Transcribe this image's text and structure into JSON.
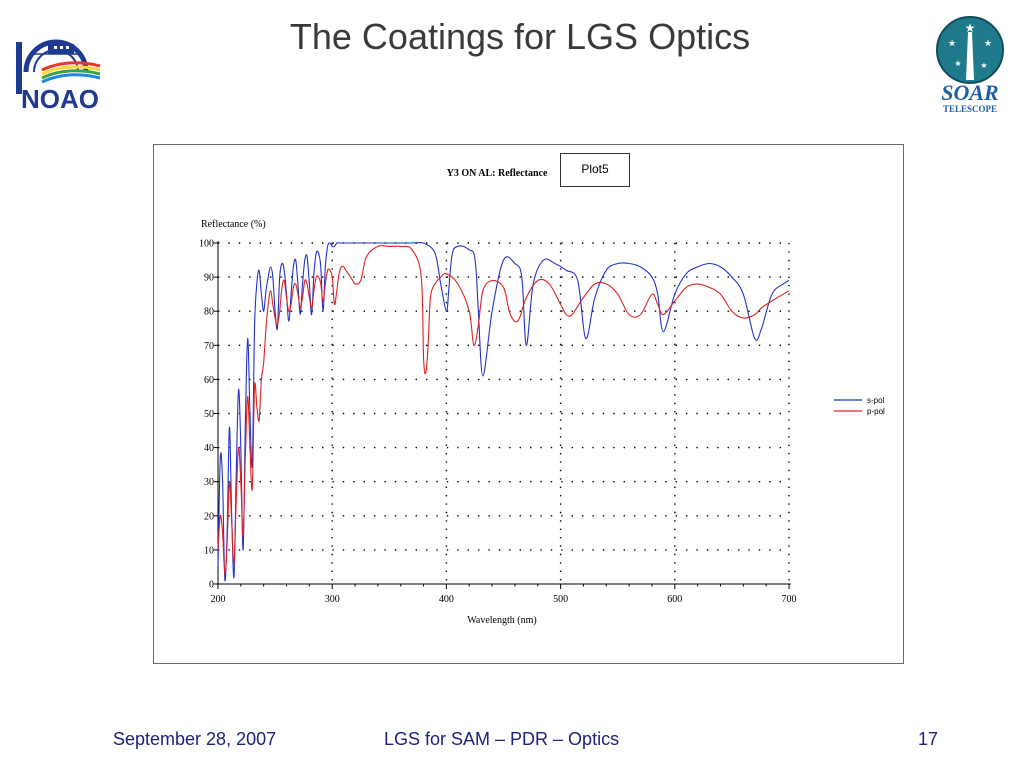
{
  "slide": {
    "title": "The Coatings for LGS Optics",
    "left_logo_text": "NOAO",
    "right_logo_text": "SOAR",
    "right_logo_subtext": "TELESCOPE",
    "plot_tag": "Plot5"
  },
  "footer": {
    "date": "September 28, 2007",
    "center": "LGS for SAM – PDR – Optics",
    "page": "17"
  },
  "colors": {
    "title": "#3a3a3a",
    "footer": "#1a237e",
    "s_pol": "#2233cc",
    "p_pol": "#dd2222",
    "noao_blue": "#1f3a93",
    "soar_teal": "#1f7a8c"
  },
  "chart_data": {
    "type": "line",
    "title": "Y3 ON AL: Reflectance",
    "xlabel": "Wavelength (nm)",
    "ylabel": "Reflectance (%)",
    "xlim": [
      200,
      700
    ],
    "ylim": [
      0,
      100
    ],
    "x_ticks": [
      200,
      300,
      400,
      500,
      600,
      700
    ],
    "y_ticks": [
      0,
      10,
      20,
      30,
      40,
      50,
      60,
      70,
      80,
      90,
      100
    ],
    "grid": true,
    "legend_position": "right",
    "series": [
      {
        "name": "s-pol",
        "color": "#2233cc",
        "x": [
          200,
          202,
          204,
          206,
          208,
          210,
          212,
          214,
          216,
          218,
          220,
          222,
          224,
          226,
          228,
          230,
          232,
          234,
          236,
          238,
          240,
          242,
          244,
          246,
          248,
          250,
          252,
          254,
          256,
          258,
          260,
          262,
          264,
          266,
          268,
          270,
          272,
          274,
          276,
          278,
          280,
          282,
          284,
          286,
          288,
          290,
          292,
          294,
          296,
          298,
          300,
          302,
          304,
          306,
          308,
          310,
          312,
          314,
          316,
          318,
          320,
          325,
          330,
          335,
          340,
          350,
          360,
          370,
          380,
          390,
          395,
          400,
          402,
          404,
          406,
          410,
          415,
          420,
          424,
          426,
          428,
          432,
          440,
          450,
          460,
          466,
          470,
          476,
          485,
          495,
          505,
          515,
          522,
          530,
          540,
          550,
          560,
          570,
          580,
          585,
          590,
          600,
          610,
          620,
          630,
          640,
          650,
          660,
          670,
          676,
          685,
          695,
          700
        ],
        "y": [
          5,
          37,
          30,
          1,
          15,
          46,
          20,
          2,
          33,
          57,
          40,
          10,
          48,
          72,
          50,
          35,
          75,
          88,
          92,
          85,
          80,
          86,
          90,
          93,
          90,
          80,
          75,
          90,
          94,
          92,
          85,
          77,
          85,
          93,
          95,
          88,
          79,
          88,
          95,
          96,
          88,
          79,
          91,
          97,
          97,
          93,
          80,
          93,
          99,
          100,
          99,
          99,
          100,
          100,
          100,
          100,
          100,
          100,
          100,
          100,
          100,
          100,
          100,
          100,
          100,
          100,
          100,
          100,
          100,
          97,
          88,
          80,
          86,
          94,
          98,
          99,
          99,
          98,
          97,
          92,
          80,
          61,
          80,
          95,
          94,
          90,
          70,
          88,
          95,
          94,
          92,
          89,
          72,
          84,
          92,
          94,
          94,
          93,
          90,
          85,
          74,
          85,
          91,
          93,
          94,
          93,
          90,
          85,
          72,
          75,
          85,
          88,
          89
        ]
      },
      {
        "name": "p-pol",
        "color": "#dd2222",
        "x": [
          200,
          202,
          204,
          206,
          208,
          210,
          212,
          214,
          216,
          218,
          220,
          222,
          224,
          226,
          228,
          230,
          232,
          234,
          236,
          238,
          240,
          242,
          244,
          246,
          248,
          250,
          252,
          254,
          256,
          258,
          260,
          262,
          264,
          266,
          268,
          270,
          272,
          274,
          276,
          278,
          280,
          282,
          284,
          286,
          288,
          290,
          292,
          294,
          296,
          298,
          300,
          302,
          304,
          306,
          308,
          310,
          312,
          314,
          316,
          318,
          320,
          325,
          330,
          340,
          350,
          360,
          370,
          378,
          380,
          382,
          384,
          386,
          390,
          395,
          400,
          410,
          420,
          424,
          428,
          432,
          440,
          450,
          455,
          460,
          464,
          470,
          480,
          490,
          500,
          505,
          510,
          520,
          530,
          540,
          550,
          560,
          570,
          580,
          585,
          590,
          600,
          610,
          620,
          630,
          640,
          650,
          660,
          670,
          676,
          685,
          695,
          700
        ],
        "y": [
          10,
          20,
          15,
          3,
          12,
          30,
          18,
          6,
          25,
          40,
          30,
          14,
          38,
          55,
          40,
          28,
          58,
          52,
          48,
          60,
          65,
          75,
          82,
          86,
          82,
          78,
          76,
          80,
          87,
          89,
          84,
          80,
          82,
          87,
          88,
          85,
          81,
          84,
          89,
          88,
          84,
          81,
          86,
          90,
          90,
          88,
          83,
          88,
          92,
          92,
          90,
          82,
          86,
          91,
          93,
          93,
          92,
          91,
          90,
          89,
          88,
          89,
          96,
          99,
          99,
          99,
          98,
          90,
          66,
          62,
          70,
          84,
          88,
          90,
          91,
          88,
          80,
          70,
          76,
          86,
          89,
          87,
          80,
          77,
          78,
          84,
          89,
          88,
          82,
          79,
          79,
          84,
          88,
          88,
          85,
          79,
          79,
          85,
          82,
          79,
          83,
          87,
          88,
          87,
          85,
          80,
          78,
          79,
          81,
          83,
          85,
          86
        ]
      }
    ]
  }
}
